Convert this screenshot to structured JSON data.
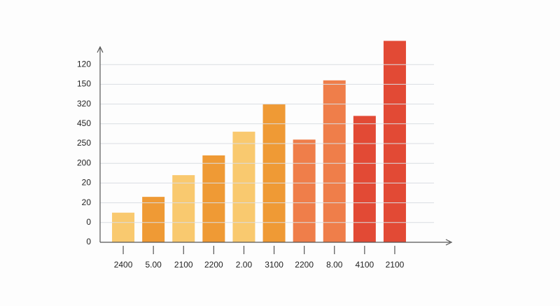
{
  "chart_data": {
    "type": "bar",
    "categories": [
      "2400",
      "5.00",
      "2100",
      "2200",
      "2.00",
      "3100",
      "2200",
      "8.00",
      "4100",
      "2100"
    ],
    "values": [
      1.5,
      2.3,
      3.4,
      4.4,
      5.6,
      7.0,
      5.2,
      8.2,
      6.4,
      10.2
    ],
    "colors": [
      "#f9c96f",
      "#ef9a35",
      "#f9c96f",
      "#ef9a35",
      "#f9c96f",
      "#ef9a35",
      "#ef7e4a",
      "#ef7e4a",
      "#e24a35",
      "#e24a35"
    ],
    "ylim": [
      0,
      10
    ],
    "yticks": [
      {
        "value": 0,
        "label": "0"
      },
      {
        "value": 1,
        "label": "0"
      },
      {
        "value": 2,
        "label": "20"
      },
      {
        "value": 3,
        "label": "20"
      },
      {
        "value": 4,
        "label": "200"
      },
      {
        "value": 5,
        "label": "250"
      },
      {
        "value": 6,
        "label": "450"
      },
      {
        "value": 7,
        "label": "320"
      },
      {
        "value": 8,
        "label": "150"
      },
      {
        "value": 9,
        "label": "120"
      }
    ],
    "grid": true
  }
}
